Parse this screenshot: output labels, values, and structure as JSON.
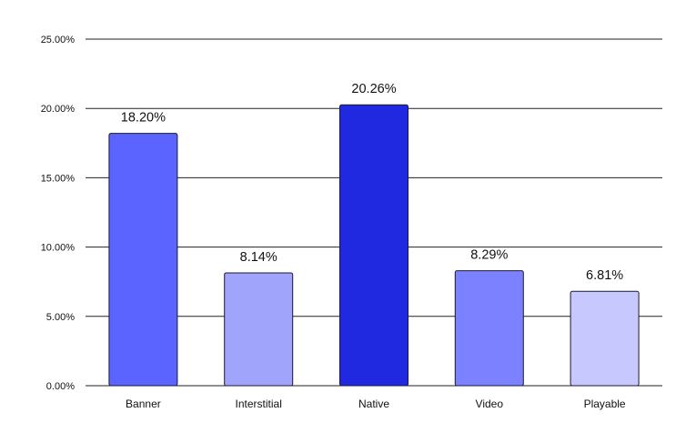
{
  "chart_data": {
    "type": "bar",
    "title": "",
    "xlabel": "",
    "ylabel": "",
    "categories": [
      "Banner",
      "Interstitial",
      "Native",
      "Video",
      "Playable"
    ],
    "values": [
      18.2,
      8.14,
      20.26,
      8.29,
      6.81
    ],
    "data_labels": [
      "18.20%",
      "8.14%",
      "20.26%",
      "8.29%",
      "6.81%"
    ],
    "bar_colors": [
      "#5b64ff",
      "#a0a4fb",
      "#2129e0",
      "#7b81ff",
      "#c7c8fd"
    ],
    "ylim": [
      0,
      25
    ],
    "yticks": [
      0,
      5,
      10,
      15,
      20,
      25
    ],
    "ytick_labels": [
      "0.00%",
      "5.00%",
      "10.00%",
      "15.00%",
      "20.00%",
      "25.00%"
    ],
    "grid": true,
    "legend": "none"
  }
}
